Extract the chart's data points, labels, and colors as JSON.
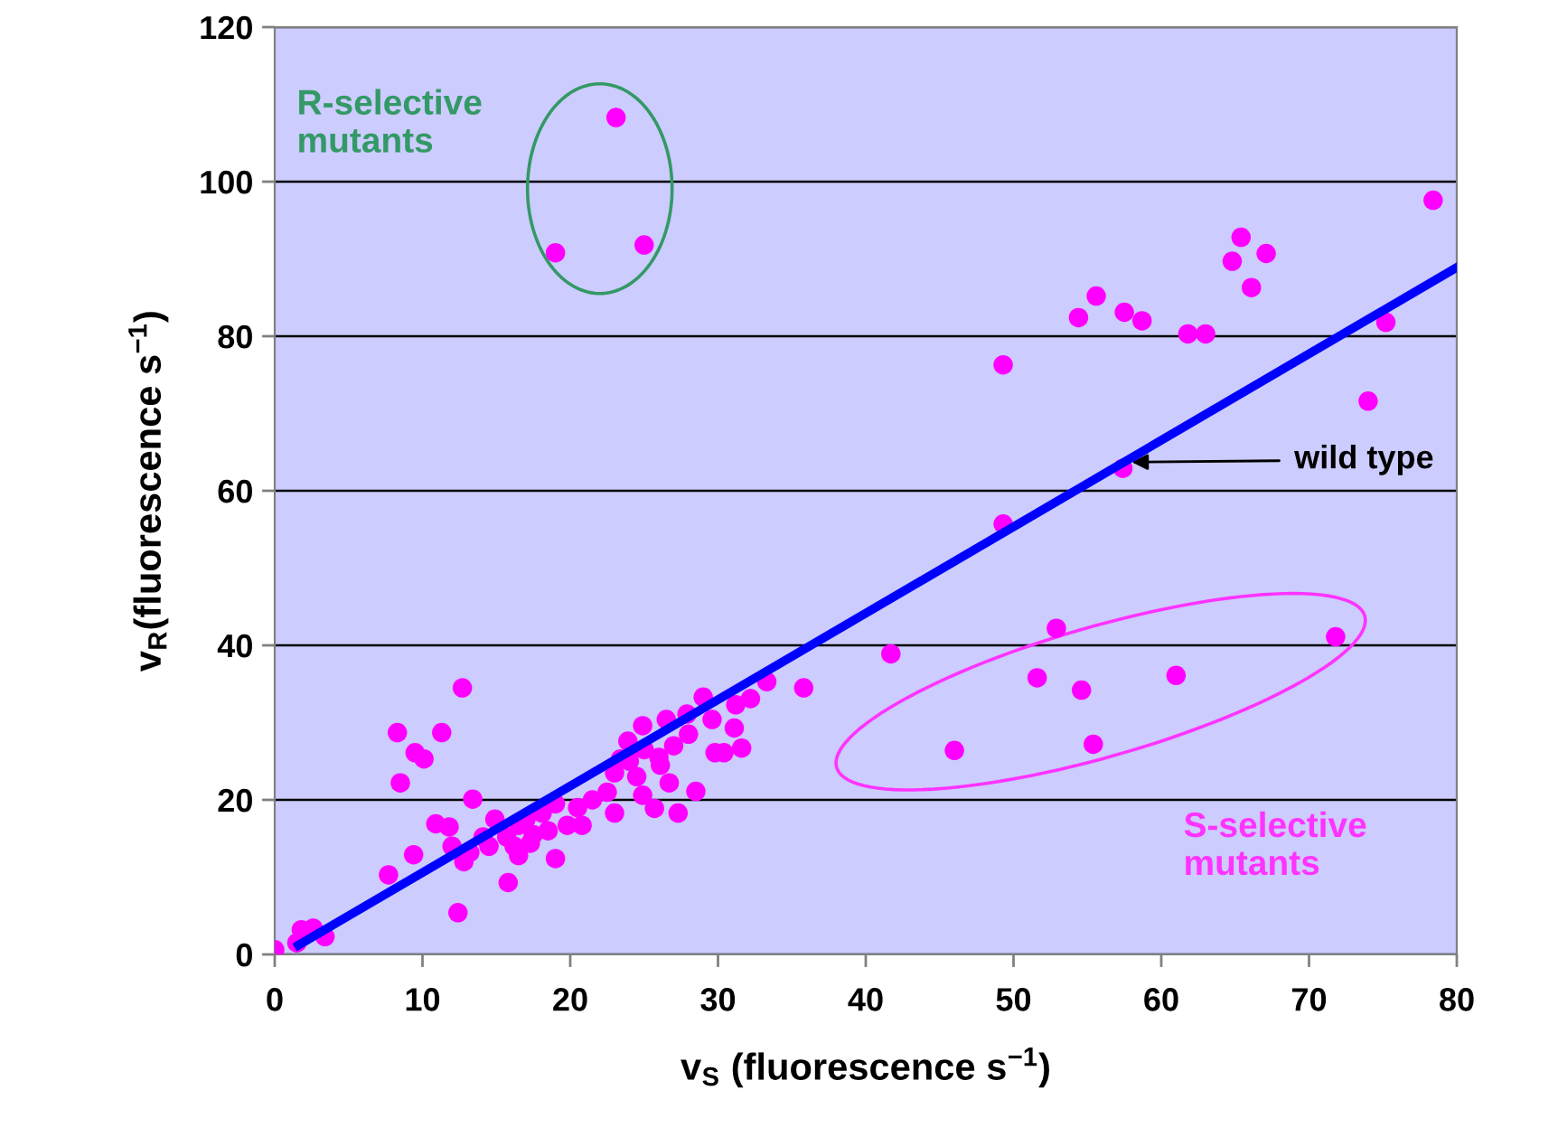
{
  "chart_data": {
    "type": "scatter",
    "xlabel": "v$_{S}$ (fluorescence s$^{−1}$)",
    "ylabel": "v$_{R}$(fluorescence s$^{−1}$)",
    "xlim": [
      0,
      80
    ],
    "ylim": [
      0,
      120
    ],
    "xticks": [
      0,
      10,
      20,
      30,
      40,
      50,
      60,
      70,
      80
    ],
    "yticks": [
      0,
      20,
      40,
      60,
      80,
      100,
      120
    ],
    "grid": "y",
    "legend": false,
    "annotations": [
      "R-selective\nmutants",
      "S-selective\nmutants",
      {
        "text": "wild type",
        "x": 58.0,
        "y": 63.7
      }
    ],
    "series": [
      {
        "color": "#ff00ff",
        "marker": "circle",
        "x": [
          78.4,
          65.4,
          67.1,
          64.8,
          66.1,
          55.6,
          54.4,
          57.5,
          58.7,
          61.8,
          63.0,
          75.2,
          49.3,
          74.0,
          57.4,
          49.3,
          52.9,
          41.7,
          71.8,
          35.8,
          51.6,
          54.6,
          61.0,
          46.0,
          55.4,
          23.1,
          19.0,
          25.0,
          12.7,
          8.3,
          11.3,
          9.5,
          10.1,
          8.5,
          13.4,
          10.9,
          11.8,
          9.4,
          7.7,
          15.8,
          12.4,
          0,
          1.8,
          2.6,
          3.4,
          1.5,
          33.3,
          29.0,
          32.2,
          31.1,
          31.6,
          29.8,
          30.4,
          28.5,
          27.3,
          25.7,
          26.7,
          24.9,
          23.0,
          20.8,
          19.0,
          16.5,
          26.1,
          24.9,
          26.5,
          27.9,
          29.6,
          31.2,
          12.0,
          12.8,
          14.9,
          17.3,
          18.1,
          23.4,
          23.9,
          19.8,
          16.5,
          15.7,
          14.1,
          13.2,
          17.0,
          19.0,
          23.0,
          24.0,
          25.0,
          17.5,
          18.5,
          20.5,
          21.5,
          22.5,
          16.2,
          14.5,
          24.5,
          26.0,
          27.0,
          28.0
        ],
        "values": [
          97.6,
          92.8,
          90.7,
          89.7,
          86.3,
          85.2,
          82.4,
          83.1,
          82.0,
          80.3,
          80.3,
          81.8,
          76.3,
          71.6,
          62.9,
          55.7,
          42.2,
          38.9,
          41.1,
          34.5,
          35.8,
          34.2,
          36.1,
          26.4,
          27.2,
          108.3,
          90.8,
          91.8,
          34.5,
          28.7,
          28.7,
          26.1,
          25.3,
          22.2,
          20.1,
          16.9,
          16.5,
          12.9,
          10.3,
          9.3,
          5.4,
          0.6,
          3.2,
          3.4,
          2.3,
          1.5,
          35.3,
          33.3,
          33.1,
          29.3,
          26.7,
          26.1,
          26.1,
          21.1,
          18.3,
          18.9,
          22.2,
          20.6,
          18.3,
          16.7,
          12.4,
          12.8,
          24.5,
          29.6,
          30.4,
          31.1,
          30.4,
          32.3,
          14.0,
          12.0,
          17.5,
          14.4,
          18.3,
          25.3,
          27.6,
          16.7,
          16.7,
          15.2,
          15.2,
          13.2,
          17.5,
          19.5,
          23.5,
          25.0,
          26.5,
          15.5,
          16.0,
          19.0,
          20.0,
          21.0,
          14.0,
          14.0,
          23.0,
          25.5,
          27.0,
          28.5
        ]
      },
      {
        "type": "line",
        "color": "#0000ff",
        "x": [
          1.6,
          80
        ],
        "values": [
          1.2,
          88.9
        ]
      }
    ]
  }
}
